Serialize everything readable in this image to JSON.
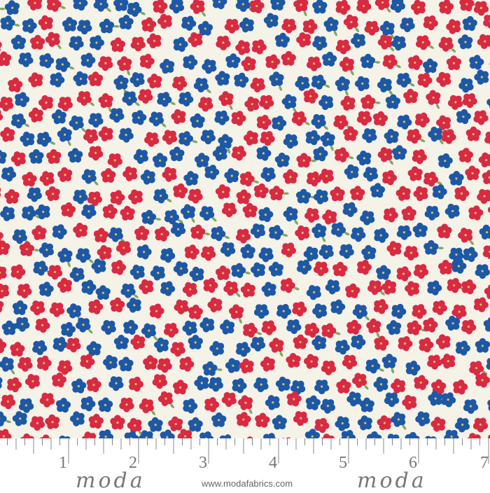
{
  "fabric": {
    "background_color": "#f5f2e8",
    "flower_colors": {
      "red": "#d92a43",
      "blue": "#1d58a7",
      "center": "#d9c45a",
      "leaf": "#7ea860"
    }
  },
  "ruler": {
    "numbers": [
      "1",
      "2",
      "3",
      "4",
      "5",
      "6",
      "7"
    ],
    "tick_color": "#888888"
  },
  "branding": {
    "logo": "moda",
    "url": "www.modafabrics.com"
  }
}
